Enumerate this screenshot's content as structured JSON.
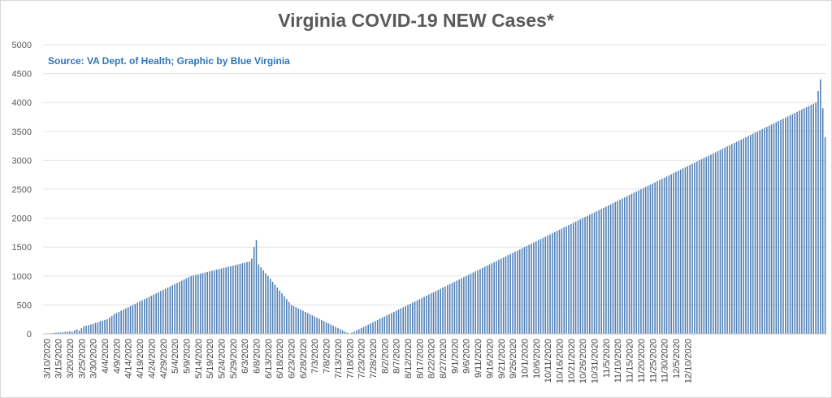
{
  "colors": {
    "bar": "#4f7fb6",
    "title": "#595959",
    "subtitle": "#2e75b6",
    "grid": "#e3e3e3"
  },
  "chart_data": {
    "type": "bar",
    "title": "Virginia COVID-19 NEW Cases*",
    "subtitle": "Source: VA Dept. of Health; Graphic by Blue Virginia",
    "xlabel": "",
    "ylabel": "",
    "ylim": [
      0,
      5000
    ],
    "yticks": [
      0,
      500,
      1000,
      1500,
      2000,
      2500,
      3000,
      3500,
      4000,
      4500,
      5000
    ],
    "grid": true,
    "legend": "none",
    "start_date": "3/9/2020",
    "x_tick_labels": [
      "3/10/2020",
      "3/15/2020",
      "3/20/2020",
      "3/25/2020",
      "3/30/2020",
      "4/4/2020",
      "4/9/2020",
      "4/14/2020",
      "4/19/2020",
      "4/24/2020",
      "4/29/2020",
      "5/4/2020",
      "5/9/2020",
      "5/14/2020",
      "5/19/2020",
      "5/24/2020",
      "5/29/2020",
      "6/3/2020",
      "6/8/2020",
      "6/13/2020",
      "6/18/2020",
      "6/23/2020",
      "6/28/2020",
      "7/3/2020",
      "7/8/2020",
      "7/13/2020",
      "7/18/2020",
      "7/23/2020",
      "7/28/2020",
      "8/2/2020",
      "8/7/2020",
      "8/12/2020",
      "8/17/2020",
      "8/22/2020",
      "8/27/2020",
      "9/1/2020",
      "9/6/2020",
      "9/11/2020",
      "9/16/2020",
      "9/21/2020",
      "9/26/2020",
      "10/1/2020",
      "10/6/2020",
      "10/11/2020",
      "10/16/2020",
      "10/21/2020",
      "10/26/2020",
      "10/31/2020",
      "11/5/2020",
      "11/10/2020",
      "11/15/2020",
      "11/20/2020",
      "11/25/2020",
      "11/30/2020",
      "12/5/2020",
      "12/10/2020"
    ],
    "values": [
      2,
      3,
      5,
      10,
      15,
      20,
      25,
      22,
      30,
      35,
      40,
      45,
      35,
      60,
      75,
      55,
      100,
      130,
      140,
      150,
      160,
      170,
      190,
      200,
      220,
      230,
      240,
      250,
      280,
      310,
      340,
      360,
      380,
      400,
      420,
      440,
      460,
      480,
      500,
      520,
      540,
      560,
      580,
      600,
      620,
      640,
      660,
      680,
      700,
      720,
      740,
      760,
      780,
      800,
      820,
      840,
      860,
      880,
      900,
      920,
      940,
      960,
      980,
      1000,
      1010,
      1020,
      1030,
      1040,
      1050,
      1060,
      1070,
      1080,
      1090,
      1100,
      1110,
      1120,
      1130,
      1140,
      1150,
      1160,
      1170,
      1180,
      1190,
      1200,
      1210,
      1220,
      1230,
      1240,
      1250,
      1300,
      1500,
      1620,
      1200,
      1150,
      1100,
      1050,
      1000,
      950,
      900,
      850,
      800,
      750,
      700,
      650,
      600,
      550,
      500,
      480,
      460,
      440,
      420,
      400,
      380,
      360,
      340,
      320,
      300,
      280,
      260,
      240,
      220,
      200,
      180,
      160,
      140,
      120,
      100,
      80,
      60,
      40,
      20,
      0,
      20,
      40,
      60,
      80,
      100,
      120,
      140,
      160,
      180,
      200,
      220,
      240,
      260,
      280,
      300,
      320,
      340,
      360,
      380,
      400,
      420,
      440,
      460,
      480,
      500,
      520,
      540,
      560,
      580,
      600,
      620,
      640,
      660,
      680,
      700,
      720,
      740,
      760,
      780,
      800,
      820,
      840,
      860,
      880,
      900,
      920,
      940,
      960,
      980,
      1000,
      1020,
      1040,
      1060,
      1080,
      1100,
      1120,
      1140,
      1160,
      1180,
      1200,
      1220,
      1240,
      1260,
      1280,
      1300,
      1320,
      1340,
      1360,
      1380,
      1400,
      1420,
      1440,
      1460,
      1480,
      1500,
      1520,
      1540,
      1560,
      1580,
      1600,
      1620,
      1640,
      1660,
      1680,
      1700,
      1720,
      1740,
      1760,
      1780,
      1800,
      1820,
      1840,
      1860,
      1880,
      1900,
      1920,
      1940,
      1960,
      1980,
      2000,
      2020,
      2040,
      2060,
      2080,
      2100,
      2120,
      2140,
      2160,
      2180,
      2200,
      2220,
      2240,
      2260,
      2280,
      2300,
      2320,
      2340,
      2360,
      2380,
      2400,
      2420,
      2440,
      2460,
      2480,
      2500,
      2520,
      2540,
      2560,
      2580,
      2600,
      2620,
      2640,
      2660,
      2680,
      2700,
      2720,
      2740,
      2760,
      2780,
      2800,
      2820,
      2840,
      2860,
      2880,
      2900,
      2920,
      2940,
      2960,
      2980,
      3000,
      3020,
      3040,
      3060,
      3080,
      3100,
      3120,
      3140,
      3160,
      3180,
      3200,
      3220,
      3240,
      3260,
      3280,
      3300,
      3320,
      3340,
      3360,
      3380,
      3400,
      3420,
      3440,
      3460,
      3480,
      3500,
      3520,
      3540,
      3560,
      3580,
      3600,
      3620,
      3640,
      3660,
      3680,
      3700,
      3720,
      3740,
      3760,
      3780,
      3800,
      3820,
      3840,
      3860,
      3880,
      3900,
      3920,
      3940,
      3960,
      3980,
      4000,
      4200,
      4400,
      3900,
      3400
    ]
  }
}
